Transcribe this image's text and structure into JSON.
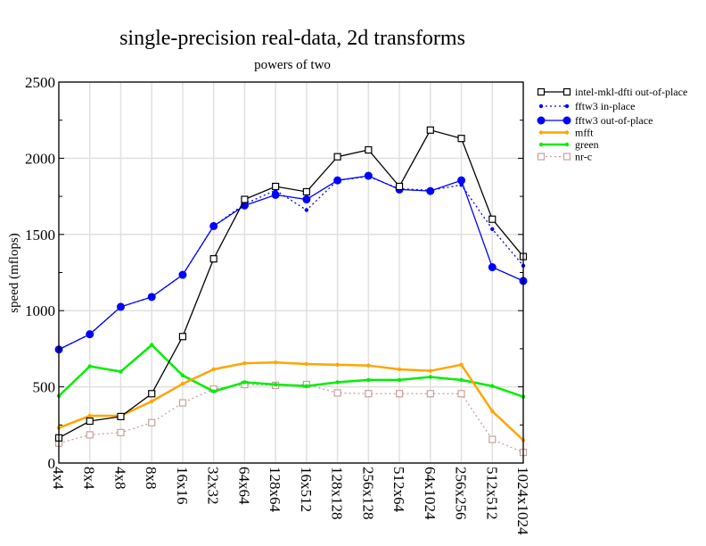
{
  "chart_data": {
    "type": "line",
    "title": "single-precision real-data, 2d transforms",
    "subtitle": "powers of two",
    "xlabel": "",
    "ylabel": "speed (mflops)",
    "ylim": [
      0,
      2500
    ],
    "yticks": [
      0,
      500,
      1000,
      1500,
      2000,
      2500
    ],
    "grid": true,
    "legend_position": "right",
    "categories": [
      "4x4",
      "8x4",
      "4x8",
      "8x8",
      "16x16",
      "32x32",
      "64x64",
      "128x64",
      "16x512",
      "128x128",
      "256x128",
      "512x64",
      "64x1024",
      "256x256",
      "512x512",
      "1024x1024"
    ],
    "series": [
      {
        "name": "intel-mkl-dfti out-of-place",
        "color": "#000000",
        "marker": "open-square",
        "line": "solid",
        "values": [
          165,
          275,
          305,
          455,
          830,
          1340,
          1730,
          1815,
          1780,
          2010,
          2055,
          1815,
          2185,
          2130,
          1600,
          1355
        ]
      },
      {
        "name": "fftw3 in-place",
        "color": "#0000ff",
        "marker": "small-dot",
        "line": "dotted",
        "values": [
          745,
          845,
          1025,
          1090,
          1235,
          1555,
          1700,
          1790,
          1660,
          1855,
          1880,
          1800,
          1790,
          1825,
          1535,
          1295
        ]
      },
      {
        "name": "fftw3 out-of-place",
        "color": "#0000ff",
        "marker": "large-dot",
        "line": "solid",
        "values": [
          745,
          845,
          1025,
          1090,
          1235,
          1555,
          1690,
          1760,
          1730,
          1855,
          1885,
          1795,
          1785,
          1855,
          1285,
          1195
        ]
      },
      {
        "name": "mfft",
        "color": "#ffa500",
        "marker": "small-dot",
        "line": "solid-thick",
        "values": [
          230,
          310,
          310,
          405,
          520,
          615,
          655,
          660,
          650,
          645,
          640,
          615,
          605,
          645,
          340,
          150
        ]
      },
      {
        "name": "green",
        "color": "#00ee00",
        "marker": "small-dot",
        "line": "solid-thick",
        "values": [
          440,
          635,
          600,
          775,
          575,
          470,
          530,
          515,
          505,
          530,
          545,
          545,
          565,
          545,
          505,
          435
        ]
      },
      {
        "name": "nr-c",
        "color": "#c8a0a0",
        "marker": "open-square",
        "line": "dotted",
        "values": [
          130,
          185,
          200,
          265,
          395,
          485,
          515,
          510,
          515,
          460,
          455,
          455,
          455,
          455,
          155,
          70
        ]
      }
    ]
  }
}
